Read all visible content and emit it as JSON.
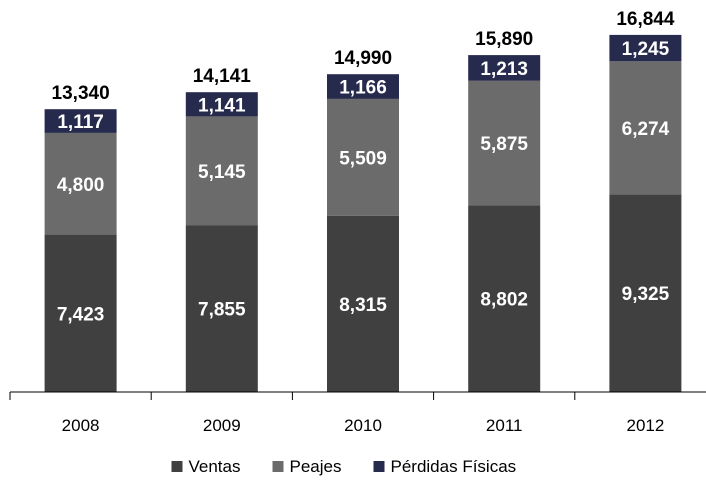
{
  "chart_data": {
    "type": "bar",
    "stacked": true,
    "categories": [
      "2008",
      "2009",
      "2010",
      "2011",
      "2012"
    ],
    "series": [
      {
        "name": "Ventas",
        "color": "#404040",
        "values": [
          7423,
          7855,
          8315,
          8802,
          9325
        ]
      },
      {
        "name": "Peajes",
        "color": "#6b6b6b",
        "values": [
          4800,
          5145,
          5509,
          5875,
          6274
        ]
      },
      {
        "name": "Pérdidas Físicas",
        "color": "#262a4d",
        "values": [
          1117,
          1141,
          1166,
          1213,
          1245
        ]
      }
    ],
    "totals": [
      13340,
      14141,
      14990,
      15890,
      16844
    ],
    "segment_labels": [
      [
        "7,423",
        "7,855",
        "8,315",
        "8,802",
        "9,325"
      ],
      [
        "4,800",
        "5,145",
        "5,509",
        "5,875",
        "6,274"
      ],
      [
        "1,117",
        "1,141",
        "1,166",
        "1,213",
        "1,245"
      ]
    ],
    "total_labels": [
      "13,340",
      "14,141",
      "14,990",
      "15,890",
      "16,844"
    ],
    "ylim": [
      0,
      17500
    ],
    "grid": false,
    "legend_position": "bottom"
  }
}
